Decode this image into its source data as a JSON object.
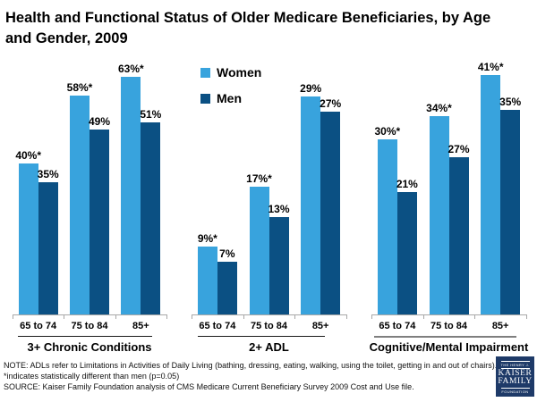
{
  "title": {
    "line1": "Health and Functional Status of Older Medicare Beneficiaries, by Age",
    "line2": "and Gender, 2009"
  },
  "legend": {
    "women_label": "Women",
    "men_label": "Men"
  },
  "colors": {
    "women": "#38A3DD",
    "men": "#0B5083",
    "axis": "#A8A8A8",
    "logo_bg": "#1E3A68"
  },
  "chart_data": {
    "type": "bar",
    "unit": "%",
    "series": [
      "Women",
      "Men"
    ],
    "categories": [
      "65 to 74",
      "75 to 84",
      "85+"
    ],
    "legend_position": "top, left of center",
    "scaling_note": "three side-by-side panels, each independently scaled, no y-axis shown",
    "groups": [
      {
        "label": "3+ Chronic Conditions",
        "women_values": [
          40,
          58,
          63
        ],
        "men_values": [
          35,
          49,
          51
        ],
        "women_labels": [
          "40%*",
          "58%*",
          "63%*"
        ],
        "men_labels": [
          "35%",
          "49%",
          "51%"
        ]
      },
      {
        "label": "2+ ADL",
        "women_values": [
          9,
          17,
          29
        ],
        "men_values": [
          7,
          13,
          27
        ],
        "women_labels": [
          "9%*",
          "17%*",
          "29%"
        ],
        "men_labels": [
          "7%",
          "13%",
          "27%"
        ]
      },
      {
        "label": "Cognitive/Mental Impairment",
        "women_values": [
          30,
          34,
          41
        ],
        "men_values": [
          21,
          27,
          35
        ],
        "women_labels": [
          "30%*",
          "34%*",
          "41%*"
        ],
        "men_labels": [
          "21%",
          "27%",
          "35%"
        ]
      }
    ]
  },
  "notes": {
    "note": "NOTE: ADLs refer to Limitations in Activities of Daily Living (bathing, dressing, eating, walking, using the toilet, getting in and out of chairs). *indicates statistically different than men (p=0.05)",
    "source": "SOURCE: Kaiser Family Foundation analysis of CMS Medicare Current Beneficiary Survey 2009 Cost and Use file."
  },
  "logo": {
    "top": "THE HENRY J.",
    "name1": "KAISER",
    "name2": "FAMILY",
    "bottom": "FOUNDATION"
  }
}
